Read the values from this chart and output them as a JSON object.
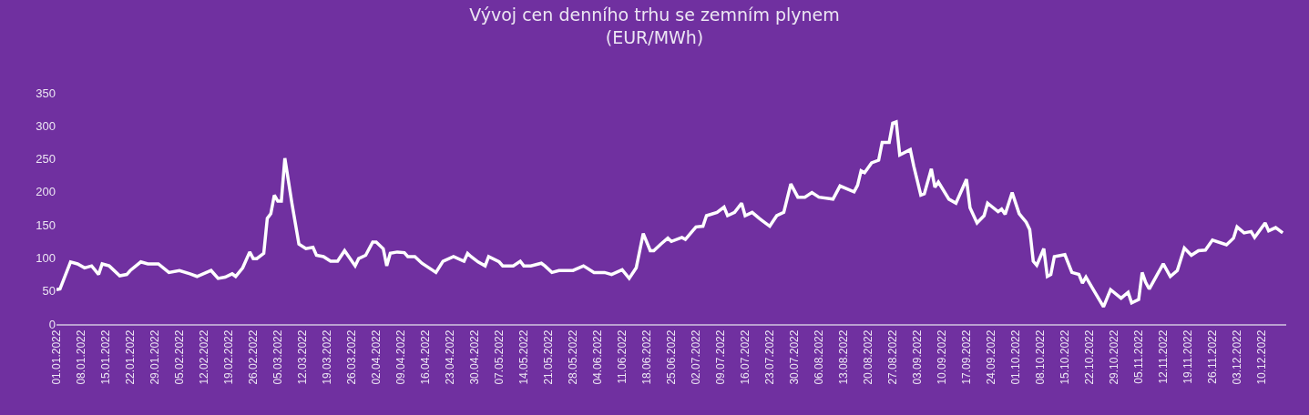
{
  "chart_data": {
    "type": "line",
    "title": "Vývoj cen denního trhu se zemním plynem\n(EUR/MWh)",
    "x": [
      "2022-01-01",
      "2022-01-02",
      "2022-01-05",
      "2022-01-07",
      "2022-01-09",
      "2022-01-11",
      "2022-01-13",
      "2022-01-14",
      "2022-01-16",
      "2022-01-19",
      "2022-01-21",
      "2022-01-22",
      "2022-01-25",
      "2022-01-27",
      "2022-01-30",
      "2022-02-02",
      "2022-02-05",
      "2022-02-08",
      "2022-02-10",
      "2022-02-14",
      "2022-02-16",
      "2022-02-18",
      "2022-02-20",
      "2022-02-21",
      "2022-02-23",
      "2022-02-25",
      "2022-02-26",
      "2022-02-27",
      "2022-03-01",
      "2022-03-02",
      "2022-03-03",
      "2022-03-04",
      "2022-03-05",
      "2022-03-06",
      "2022-03-07",
      "2022-03-09",
      "2022-03-11",
      "2022-03-13",
      "2022-03-15",
      "2022-03-16",
      "2022-03-18",
      "2022-03-20",
      "2022-03-22",
      "2022-03-24",
      "2022-03-27",
      "2022-03-28",
      "2022-03-30",
      "2022-04-01",
      "2022-04-02",
      "2022-04-04",
      "2022-04-05",
      "2022-04-06",
      "2022-04-08",
      "2022-04-10",
      "2022-04-11",
      "2022-04-13",
      "2022-04-15",
      "2022-04-19",
      "2022-04-21",
      "2022-04-24",
      "2022-04-27",
      "2022-04-28",
      "2022-04-29",
      "2022-05-01",
      "2022-05-03",
      "2022-05-04",
      "2022-05-07",
      "2022-05-08",
      "2022-05-11",
      "2022-05-13",
      "2022-05-14",
      "2022-05-16",
      "2022-05-19",
      "2022-05-20",
      "2022-05-22",
      "2022-05-24",
      "2022-05-28",
      "2022-05-31",
      "2022-06-03",
      "2022-06-06",
      "2022-06-08",
      "2022-06-11",
      "2022-06-13",
      "2022-06-15",
      "2022-06-17",
      "2022-06-19",
      "2022-06-20",
      "2022-06-22",
      "2022-06-24",
      "2022-06-25",
      "2022-06-28",
      "2022-06-29",
      "2022-07-02",
      "2022-07-04",
      "2022-07-05",
      "2022-07-08",
      "2022-07-10",
      "2022-07-11",
      "2022-07-13",
      "2022-07-15",
      "2022-07-16",
      "2022-07-18",
      "2022-07-20",
      "2022-07-21",
      "2022-07-23",
      "2022-07-25",
      "2022-07-27",
      "2022-07-29",
      "2022-07-31",
      "2022-08-02",
      "2022-08-04",
      "2022-08-06",
      "2022-08-10",
      "2022-08-12",
      "2022-08-16",
      "2022-08-17",
      "2022-08-18",
      "2022-08-19",
      "2022-08-21",
      "2022-08-23",
      "2022-08-24",
      "2022-08-26",
      "2022-08-27",
      "2022-08-28",
      "2022-08-29",
      "2022-09-01",
      "2022-09-02",
      "2022-09-04",
      "2022-09-05",
      "2022-09-07",
      "2022-09-08",
      "2022-09-09",
      "2022-09-12",
      "2022-09-14",
      "2022-09-17",
      "2022-09-18",
      "2022-09-20",
      "2022-09-22",
      "2022-09-23",
      "2022-09-26",
      "2022-09-27",
      "2022-09-28",
      "2022-09-30",
      "2022-10-02",
      "2022-10-04",
      "2022-10-05",
      "2022-10-06",
      "2022-10-07",
      "2022-10-09",
      "2022-10-10",
      "2022-10-11",
      "2022-10-12",
      "2022-10-15",
      "2022-10-17",
      "2022-10-19",
      "2022-10-20",
      "2022-10-21",
      "2022-10-23",
      "2022-10-26",
      "2022-10-28",
      "2022-10-31",
      "2022-11-02",
      "2022-11-03",
      "2022-11-05",
      "2022-11-06",
      "2022-11-07",
      "2022-11-08",
      "2022-11-12",
      "2022-11-14",
      "2022-11-16",
      "2022-11-18",
      "2022-11-20",
      "2022-11-22",
      "2022-11-24",
      "2022-11-26",
      "2022-11-30",
      "2022-12-02",
      "2022-12-03",
      "2022-12-05",
      "2022-12-07",
      "2022-12-08",
      "2022-12-11",
      "2022-12-12",
      "2022-12-14",
      "2022-12-16"
    ],
    "series": [
      {
        "color": "#ffffff",
        "values": [
          52,
          53,
          94,
          91,
          85,
          88,
          75,
          91,
          88,
          73,
          75,
          81,
          94,
          91,
          91,
          78,
          81,
          76,
          72,
          81,
          69,
          71,
          76,
          72,
          85,
          109,
          99,
          99,
          107,
          160,
          167,
          195,
          186,
          186,
          251,
          183,
          121,
          114,
          116,
          104,
          102,
          95,
          95,
          111,
          88,
          99,
          104,
          124,
          124,
          114,
          88,
          107,
          109,
          108,
          102,
          102,
          92,
          78,
          95,
          102,
          95,
          107,
          102,
          94,
          88,
          102,
          94,
          88,
          88,
          95,
          88,
          88,
          92,
          88,
          78,
          81,
          81,
          88,
          78,
          78,
          75,
          82,
          69,
          85,
          137,
          111,
          111,
          121,
          130,
          125,
          131,
          128,
          147,
          148,
          164,
          169,
          177,
          164,
          169,
          183,
          164,
          169,
          160,
          156,
          148,
          164,
          169,
          212,
          192,
          192,
          199,
          192,
          189,
          209,
          200,
          210,
          232,
          229,
          244,
          248,
          275,
          275,
          304,
          306,
          256,
          264,
          239,
          195,
          197,
          235,
          207,
          215,
          189,
          183,
          219,
          176,
          153,
          164,
          183,
          170,
          174,
          166,
          199,
          167,
          154,
          143,
          95,
          89,
          114,
          72,
          75,
          102,
          105,
          78,
          75,
          62,
          71,
          53,
          26,
          52,
          39,
          48,
          32,
          37,
          78,
          63,
          53,
          91,
          72,
          81,
          115,
          104,
          111,
          112,
          127,
          120,
          130,
          147,
          138,
          140,
          131,
          153,
          141,
          146,
          138
        ]
      }
    ],
    "xlim": [
      "2022-01-01",
      "2022-12-17"
    ],
    "xticks": [
      {
        "value": "2022-01-01",
        "label": "01.01.2022"
      },
      {
        "value": "2022-01-08",
        "label": "08.01.2022"
      },
      {
        "value": "2022-01-15",
        "label": "15.01.2022"
      },
      {
        "value": "2022-01-22",
        "label": "22.01.2022"
      },
      {
        "value": "2022-01-29",
        "label": "29.01.2022"
      },
      {
        "value": "2022-02-05",
        "label": "05.02.2022"
      },
      {
        "value": "2022-02-12",
        "label": "12.02.2022"
      },
      {
        "value": "2022-02-19",
        "label": "19.02.2022"
      },
      {
        "value": "2022-02-26",
        "label": "26.02.2022"
      },
      {
        "value": "2022-03-05",
        "label": "05.03.2022"
      },
      {
        "value": "2022-03-12",
        "label": "12.03.2022"
      },
      {
        "value": "2022-03-19",
        "label": "19.03.2022"
      },
      {
        "value": "2022-03-26",
        "label": "26.03.2022"
      },
      {
        "value": "2022-04-02",
        "label": "02.04.2022"
      },
      {
        "value": "2022-04-09",
        "label": "09.04.2022"
      },
      {
        "value": "2022-04-16",
        "label": "16.04.2022"
      },
      {
        "value": "2022-04-23",
        "label": "23.04.2022"
      },
      {
        "value": "2022-04-30",
        "label": "30.04.2022"
      },
      {
        "value": "2022-05-07",
        "label": "07.05.2022"
      },
      {
        "value": "2022-05-14",
        "label": "14.05.2022"
      },
      {
        "value": "2022-05-21",
        "label": "21.05.2022"
      },
      {
        "value": "2022-05-28",
        "label": "28.05.2022"
      },
      {
        "value": "2022-06-04",
        "label": "04.06.2022"
      },
      {
        "value": "2022-06-11",
        "label": "11.06.2022"
      },
      {
        "value": "2022-06-18",
        "label": "18.06.2022"
      },
      {
        "value": "2022-06-25",
        "label": "25.06.2022"
      },
      {
        "value": "2022-07-02",
        "label": "02.07.2022"
      },
      {
        "value": "2022-07-09",
        "label": "09.07.2022"
      },
      {
        "value": "2022-07-16",
        "label": "16.07.2022"
      },
      {
        "value": "2022-07-23",
        "label": "23.07.2022"
      },
      {
        "value": "2022-07-30",
        "label": "30.07.2022"
      },
      {
        "value": "2022-08-06",
        "label": "06.08.2022"
      },
      {
        "value": "2022-08-13",
        "label": "13.08.2022"
      },
      {
        "value": "2022-08-20",
        "label": "20.08.2022"
      },
      {
        "value": "2022-08-27",
        "label": "27.08.2022"
      },
      {
        "value": "2022-09-03",
        "label": "03.09.2022"
      },
      {
        "value": "2022-09-10",
        "label": "10.09.2022"
      },
      {
        "value": "2022-09-17",
        "label": "17.09.2022"
      },
      {
        "value": "2022-09-24",
        "label": "24.09.2022"
      },
      {
        "value": "2022-10-01",
        "label": "01.10.2022"
      },
      {
        "value": "2022-10-08",
        "label": "08.10.2022"
      },
      {
        "value": "2022-10-15",
        "label": "15.10.2022"
      },
      {
        "value": "2022-10-22",
        "label": "22.10.2022"
      },
      {
        "value": "2022-10-29",
        "label": "29.10.2022"
      },
      {
        "value": "2022-11-05",
        "label": "05.11.2022"
      },
      {
        "value": "2022-11-12",
        "label": "12.11.2022"
      },
      {
        "value": "2022-11-19",
        "label": "19.11.2022"
      },
      {
        "value": "2022-11-26",
        "label": "26.11.2022"
      },
      {
        "value": "2022-12-03",
        "label": "03.12.2022"
      },
      {
        "value": "2022-12-10",
        "label": "10.12.2022"
      }
    ],
    "ylim": [
      0,
      350
    ],
    "yticks": [
      0,
      50,
      100,
      150,
      200,
      250,
      300,
      350
    ],
    "grid": false,
    "marker": "none",
    "line_style": "solid"
  }
}
